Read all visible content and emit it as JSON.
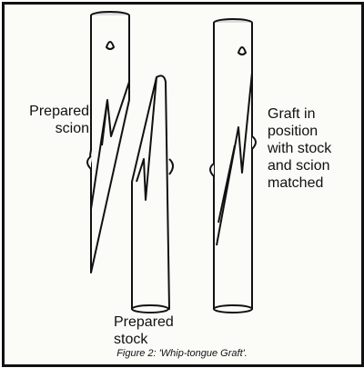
{
  "labels": {
    "scion": "Prepared scion",
    "stock": "Prepared stock",
    "graft_lines": [
      "Graft in",
      "position",
      "with stock",
      "and scion",
      "matched"
    ]
  },
  "caption": "Figure 2: 'Whip-tongue Graft'."
}
